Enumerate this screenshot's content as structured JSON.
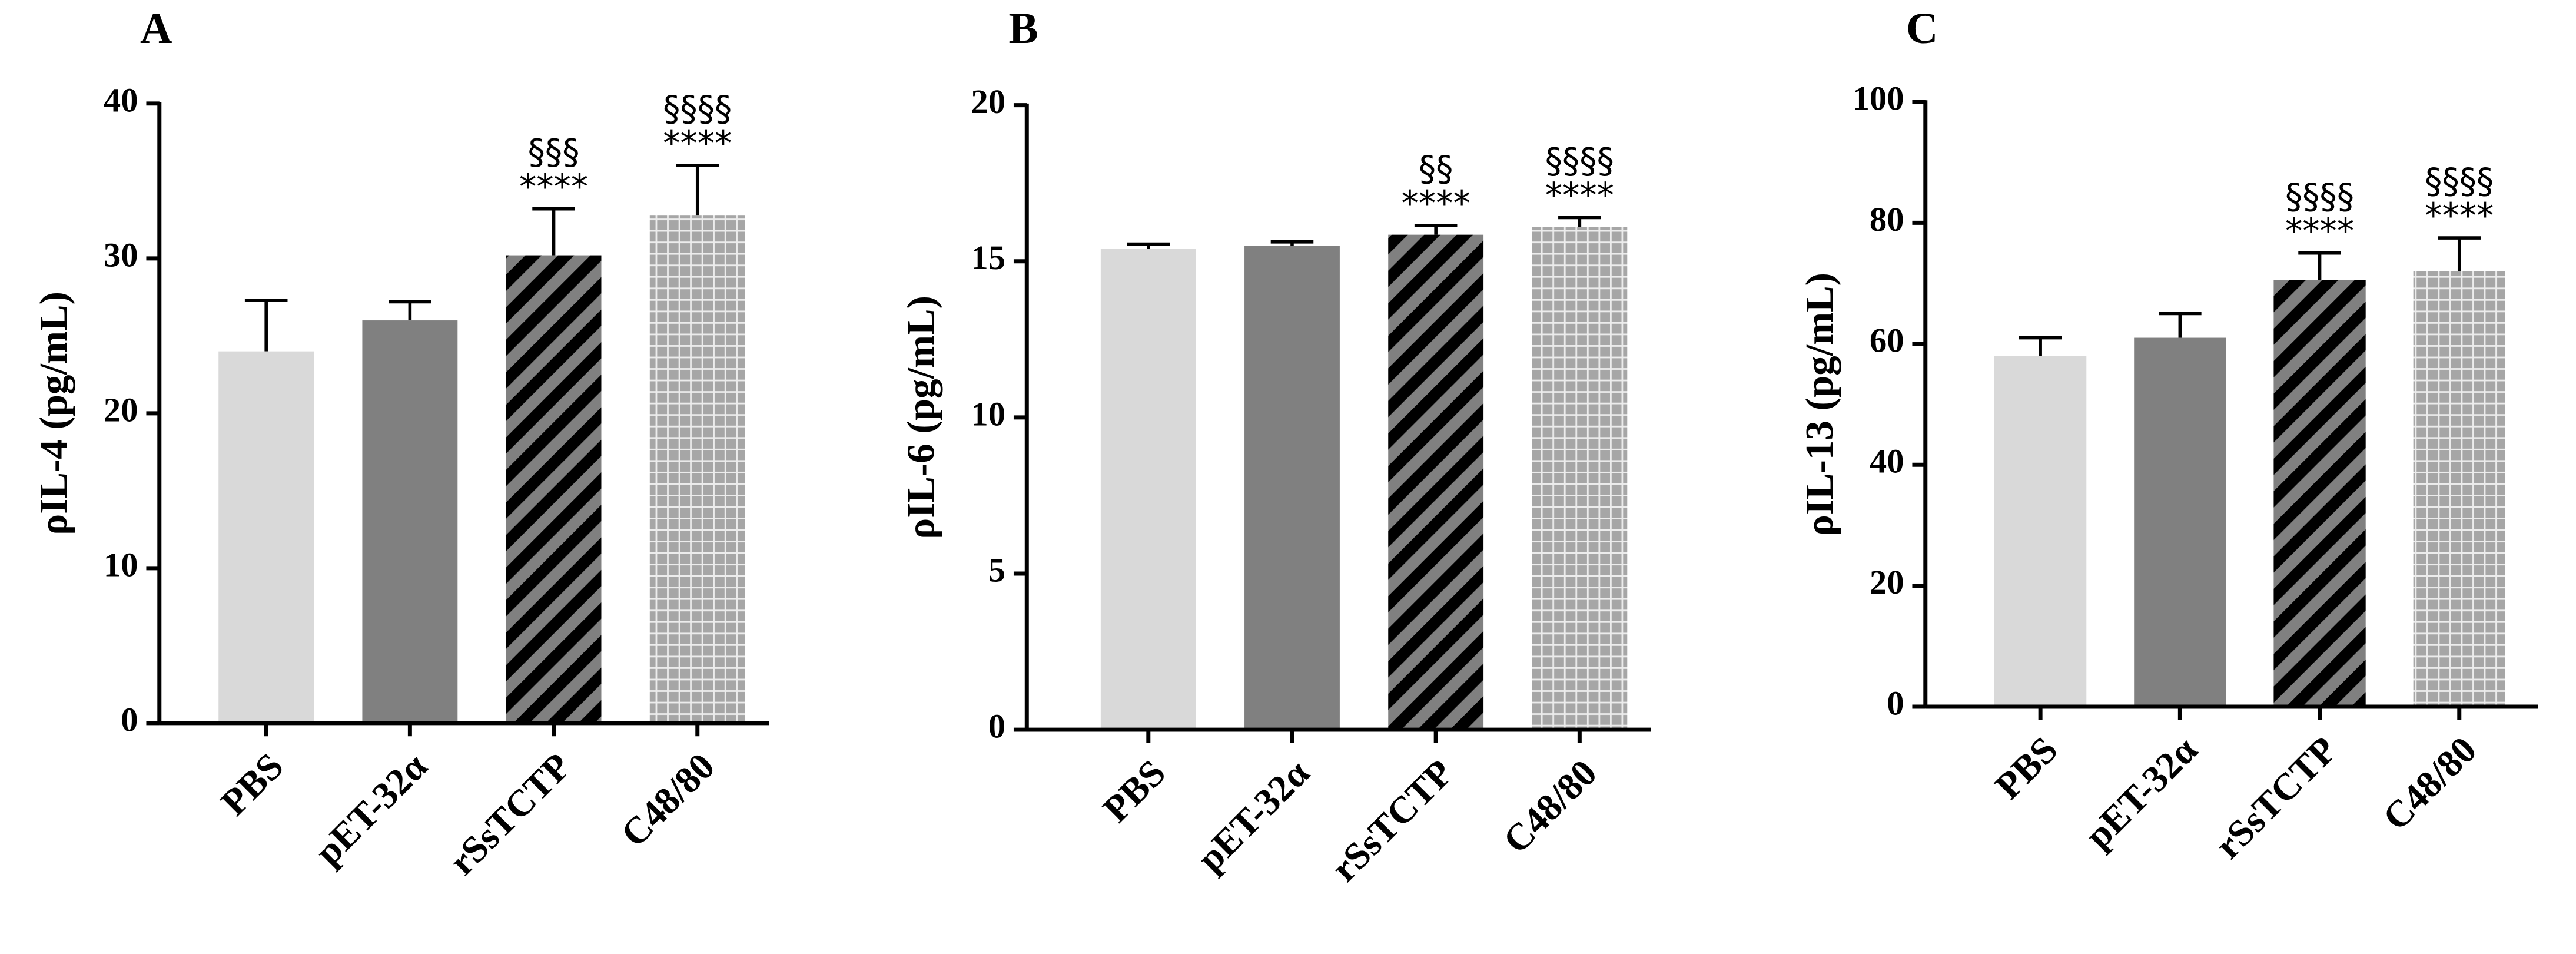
{
  "chart_data": [
    {
      "type": "bar",
      "panel": "A",
      "ylabel": "ρIL-4 (pg/mL)",
      "categories": [
        "PBS",
        "pET-32α",
        "rSsTCTP",
        "C48/80"
      ],
      "values": [
        24,
        26,
        30.2,
        32.8
      ],
      "errors": [
        3.3,
        1.2,
        3,
        3.2
      ],
      "colors": [
        "#d9d9d9",
        "#808080",
        "#808080",
        "#a6a6a6"
      ],
      "patterns": [
        "solid",
        "solid",
        "diagonal",
        "grid"
      ],
      "annotations": [
        null,
        null,
        [
          "§§§",
          "****"
        ],
        [
          "§§§§",
          "****"
        ]
      ],
      "ylim": [
        0,
        40
      ],
      "yticks": [
        0,
        10,
        20,
        30,
        40
      ]
    },
    {
      "type": "bar",
      "panel": "B",
      "ylabel": "ρIL-6 (pg/mL)",
      "categories": [
        "PBS",
        "pET-32α",
        "rSsTCTP",
        "C48/80"
      ],
      "values": [
        15.4,
        15.5,
        15.85,
        16.1
      ],
      "errors": [
        0.15,
        0.12,
        0.3,
        0.3
      ],
      "colors": [
        "#d9d9d9",
        "#808080",
        "#808080",
        "#a6a6a6"
      ],
      "patterns": [
        "solid",
        "solid",
        "diagonal",
        "grid"
      ],
      "annotations": [
        null,
        null,
        [
          "§§",
          "****"
        ],
        [
          "§§§§",
          "****"
        ]
      ],
      "ylim": [
        0,
        20
      ],
      "yticks": [
        0,
        5,
        10,
        15,
        20
      ]
    },
    {
      "type": "bar",
      "panel": "C",
      "ylabel": "ρIL-13 (pg/mL)",
      "categories": [
        "PBS",
        "pET-32α",
        "rSsTCTP",
        "C48/80"
      ],
      "values": [
        58,
        61,
        70.5,
        72
      ],
      "errors": [
        3,
        4,
        4.5,
        5.5
      ],
      "colors": [
        "#d9d9d9",
        "#808080",
        "#808080",
        "#a6a6a6"
      ],
      "patterns": [
        "solid",
        "solid",
        "diagonal",
        "grid"
      ],
      "annotations": [
        null,
        null,
        [
          "§§§§",
          "****"
        ],
        [
          "§§§§",
          "****"
        ]
      ],
      "ylim": [
        0,
        100
      ],
      "yticks": [
        0,
        20,
        40,
        60,
        80,
        100
      ]
    }
  ]
}
